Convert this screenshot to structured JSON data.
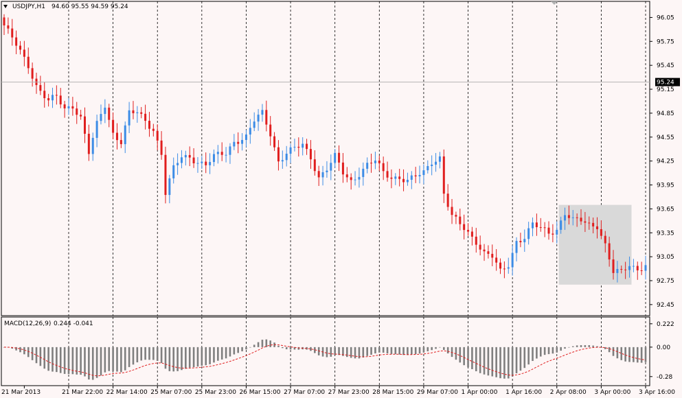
{
  "header": {
    "symbol": "USDJPY,H1",
    "ohlc": "94.60 95.55 94.59 95.24"
  },
  "macd_header": {
    "name": "MACD(12,26,9)",
    "values": "0.244 -0.041"
  },
  "colors": {
    "bg": "#fdf6f6",
    "bull": "#3c8ce6",
    "bear": "#e01e1e",
    "grid": "#000000",
    "hist": "#7f7f7f",
    "signal": "#e01e1e",
    "highlight": "#d9d9d9"
  },
  "chart_data": [
    {
      "type": "candlestick",
      "title": "USDJPY,H1",
      "ylim": [
        92.38,
        96.2
      ],
      "y_ticks": [
        "96.05",
        "95.75",
        "95.45",
        "95.15",
        "94.85",
        "94.55",
        "94.25",
        "93.95",
        "93.65",
        "93.35",
        "93.05",
        "92.75",
        "92.45"
      ],
      "current_price": "95.24",
      "current_price_value": 95.24,
      "x_ticks": [
        "21 Mar 2013",
        "21 Mar 22:00",
        "22 Mar 14:00",
        "25 Mar 07:00",
        "25 Mar 23:00",
        "26 Mar 15:00",
        "27 Mar 07:00",
        "27 Mar 23:00",
        "28 Mar 15:00",
        "29 Mar 07:00",
        "1 Apr 00:00",
        "1 Apr 16:00",
        "2 Apr 08:00",
        "3 Apr 00:00",
        "3 Apr 16:00"
      ],
      "highlight_box": {
        "from_index": 138,
        "to_index": 155,
        "high": 93.7,
        "low": 92.7
      },
      "close_path": [
        [
          0,
          95.95
        ],
        [
          3,
          95.7
        ],
        [
          6,
          95.45
        ],
        [
          8,
          95.2
        ],
        [
          11,
          95.0
        ],
        [
          13,
          95.05
        ],
        [
          15,
          94.9
        ],
        [
          17,
          94.95
        ],
        [
          19,
          94.8
        ],
        [
          21,
          94.35
        ],
        [
          23,
          94.7
        ],
        [
          25,
          94.95
        ],
        [
          27,
          94.6
        ],
        [
          29,
          94.5
        ],
        [
          31,
          94.85
        ],
        [
          33,
          94.85
        ],
        [
          35,
          94.75
        ],
        [
          37,
          94.65
        ],
        [
          39,
          94.35
        ],
        [
          40,
          93.85
        ],
        [
          42,
          94.15
        ],
        [
          44,
          94.3
        ],
        [
          46,
          94.3
        ],
        [
          48,
          94.25
        ],
        [
          50,
          94.2
        ],
        [
          52,
          94.3
        ],
        [
          55,
          94.35
        ],
        [
          57,
          94.5
        ],
        [
          60,
          94.55
        ],
        [
          62,
          94.75
        ],
        [
          64,
          94.85
        ],
        [
          66,
          94.6
        ],
        [
          68,
          94.25
        ],
        [
          70,
          94.35
        ],
        [
          72,
          94.4
        ],
        [
          74,
          94.45
        ],
        [
          76,
          94.3
        ],
        [
          78,
          94.05
        ],
        [
          80,
          94.15
        ],
        [
          82,
          94.3
        ],
        [
          84,
          94.1
        ],
        [
          86,
          94.0
        ],
        [
          88,
          94.1
        ],
        [
          90,
          94.2
        ],
        [
          92,
          94.25
        ],
        [
          94,
          94.1
        ],
        [
          96,
          94.05
        ],
        [
          98,
          94.05
        ],
        [
          100,
          94.0
        ],
        [
          102,
          94.05
        ],
        [
          104,
          94.1
        ],
        [
          106,
          94.25
        ],
        [
          108,
          94.3
        ],
        [
          109,
          93.85
        ],
        [
          111,
          93.55
        ],
        [
          113,
          93.45
        ],
        [
          115,
          93.35
        ],
        [
          117,
          93.25
        ],
        [
          119,
          93.1
        ],
        [
          121,
          93.05
        ],
        [
          123,
          92.85
        ],
        [
          125,
          92.95
        ],
        [
          127,
          93.25
        ],
        [
          129,
          93.3
        ],
        [
          131,
          93.45
        ],
        [
          133,
          93.4
        ],
        [
          135,
          93.35
        ],
        [
          137,
          93.4
        ],
        [
          139,
          93.6
        ],
        [
          141,
          93.5
        ],
        [
          143,
          93.5
        ],
        [
          145,
          93.45
        ],
        [
          147,
          93.45
        ],
        [
          149,
          93.2
        ],
        [
          151,
          92.85
        ],
        [
          153,
          92.85
        ],
        [
          155,
          92.95
        ],
        [
          157,
          92.9
        ],
        [
          159,
          92.95
        ]
      ]
    },
    {
      "type": "bar",
      "title": "MACD(12,26,9)",
      "ylim": [
        -0.34,
        0.26
      ],
      "y_ticks": [
        "0.222",
        "0.00",
        "-0.28"
      ]
    }
  ]
}
